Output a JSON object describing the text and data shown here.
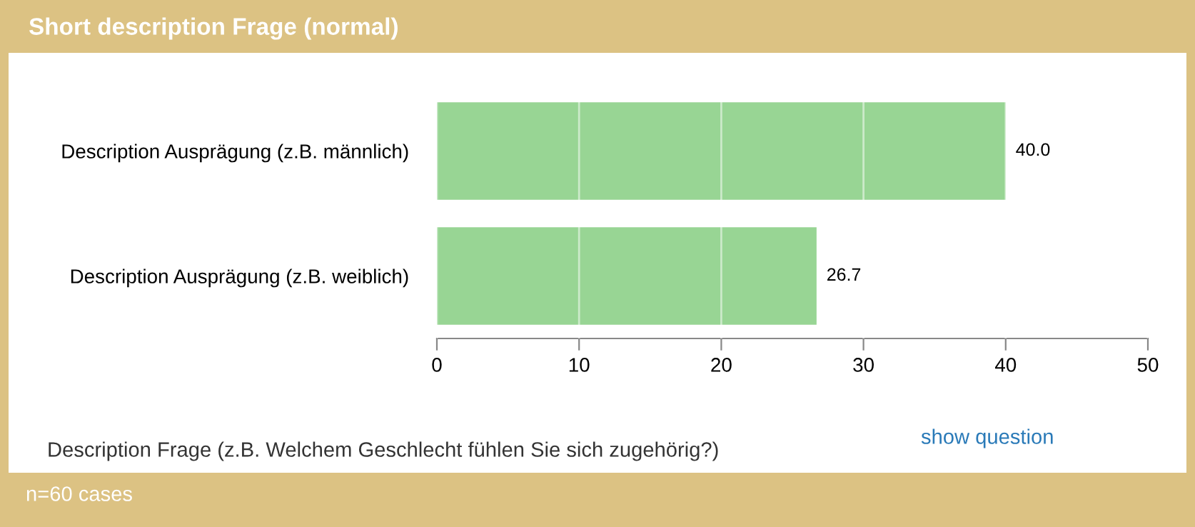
{
  "chart_data": {
    "type": "bar",
    "orientation": "horizontal",
    "title": "Short description Frage (normal)",
    "categories": [
      "Description Ausprägung (z.B. männlich)",
      "Description Ausprägung (z.B. weiblich)"
    ],
    "values": [
      40.0,
      26.7
    ],
    "value_labels": [
      "40.0",
      "26.7"
    ],
    "color": "#98d594",
    "xlim": [
      0,
      50
    ],
    "xticks": [
      0,
      10,
      20,
      30,
      40,
      50
    ],
    "grid": "x",
    "legend": false,
    "annotations": [
      "Description Frage (z.B. Welchem Geschlecht fühlen Sie sich zugehörig?)",
      "show question",
      "n=60 cases"
    ]
  }
}
